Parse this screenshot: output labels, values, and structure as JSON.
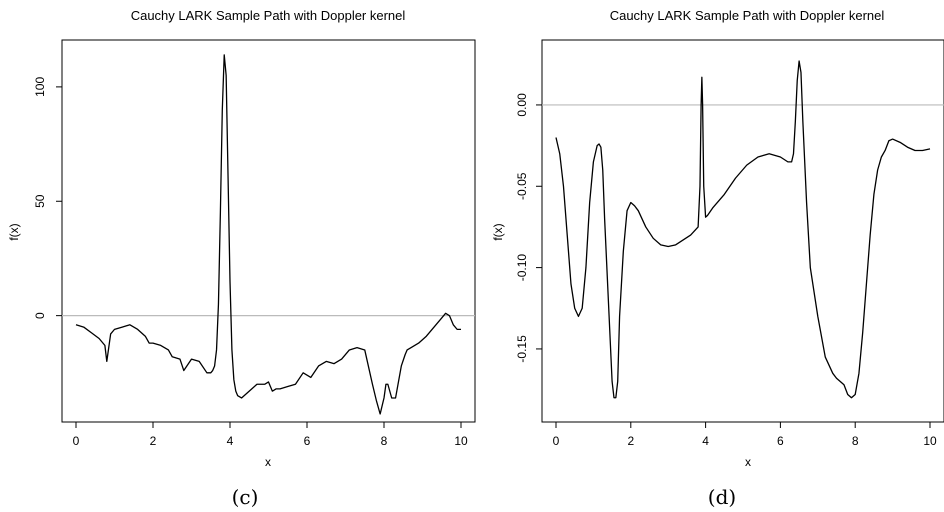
{
  "chart_data": [
    {
      "type": "line",
      "title": "Cauchy LARK Sample Path with Doppler kernel",
      "xlabel": "x",
      "ylabel": "f(x)",
      "caption": "(c)",
      "xlim": [
        0,
        10
      ],
      "ylim": [
        -43,
        117
      ],
      "xticks": [
        0,
        2,
        4,
        6,
        8,
        10
      ],
      "yticks": [
        0,
        50,
        100
      ],
      "reference_line_y": 0,
      "colors": {
        "line": "#000000",
        "reference": "#bbbbbb"
      },
      "series": [
        {
          "x": [
            0,
            0.2,
            0.4,
            0.6,
            0.75,
            0.8,
            0.9,
            1.0,
            1.2,
            1.4,
            1.6,
            1.8,
            1.9,
            2.0,
            2.2,
            2.4,
            2.5,
            2.7,
            2.8,
            3.0,
            3.2,
            3.4,
            3.5,
            3.55,
            3.6,
            3.65,
            3.7,
            3.75,
            3.8,
            3.85,
            3.9,
            3.95,
            4.0,
            4.05,
            4.1,
            4.15,
            4.2,
            4.3,
            4.5,
            4.7,
            4.9,
            5.0,
            5.1,
            5.2,
            5.3,
            5.5,
            5.7,
            5.9,
            6.1,
            6.3,
            6.5,
            6.7,
            6.9,
            7.1,
            7.3,
            7.5,
            7.7,
            7.8,
            7.9,
            8.0,
            8.05,
            8.1,
            8.2,
            8.3,
            8.45,
            8.55,
            8.6,
            8.7,
            8.9,
            9.1,
            9.3,
            9.5,
            9.6,
            9.7,
            9.8,
            9.9,
            10.0
          ],
          "y": [
            -4,
            -5,
            -7.5,
            -10,
            -13,
            -20,
            -8,
            -6,
            -5,
            -4,
            -6,
            -9,
            -12,
            -12,
            -13,
            -15,
            -18,
            -19,
            -24,
            -19,
            -20,
            -25,
            -25,
            -24,
            -22,
            -15,
            5,
            45,
            90,
            114,
            105,
            60,
            15,
            -15,
            -28,
            -33,
            -35,
            -36,
            -33,
            -30,
            -30,
            -29,
            -33,
            -32,
            -32,
            -31,
            -30,
            -25,
            -27,
            -22,
            -20,
            -21,
            -19,
            -15,
            -14,
            -15,
            -30,
            -37,
            -43,
            -36,
            -30,
            -30,
            -36,
            -36,
            -22,
            -17,
            -15,
            -14,
            -12,
            -9,
            -5,
            -1,
            1,
            0,
            -4,
            -6,
            -6
          ]
        }
      ]
    },
    {
      "type": "line",
      "title": "Cauchy LARK Sample Path with Doppler kernel",
      "xlabel": "x",
      "ylabel": "f(x)",
      "caption": "(d)",
      "xlim": [
        0,
        10
      ],
      "ylim": [
        -0.19,
        0.035
      ],
      "xticks": [
        0,
        2,
        4,
        6,
        8,
        10
      ],
      "yticks": [
        0.0,
        -0.05,
        -0.1,
        -0.15
      ],
      "ytick_labels": [
        "0.00",
        "-0.05",
        "-0.10",
        "-0.15"
      ],
      "reference_line_y": 0,
      "colors": {
        "line": "#000000",
        "reference": "#bbbbbb"
      },
      "series": [
        {
          "x": [
            0,
            0.1,
            0.2,
            0.3,
            0.4,
            0.5,
            0.6,
            0.7,
            0.8,
            0.9,
            1.0,
            1.1,
            1.15,
            1.2,
            1.25,
            1.3,
            1.4,
            1.5,
            1.55,
            1.6,
            1.65,
            1.7,
            1.8,
            1.9,
            2.0,
            2.1,
            2.2,
            2.4,
            2.6,
            2.8,
            3.0,
            3.2,
            3.4,
            3.6,
            3.8,
            3.85,
            3.88,
            3.9,
            3.92,
            3.95,
            4.0,
            4.05,
            4.2,
            4.5,
            4.8,
            5.1,
            5.4,
            5.7,
            6.0,
            6.2,
            6.3,
            6.35,
            6.4,
            6.45,
            6.5,
            6.55,
            6.6,
            6.7,
            6.8,
            7.0,
            7.2,
            7.4,
            7.5,
            7.6,
            7.7,
            7.8,
            7.9,
            8.0,
            8.1,
            8.2,
            8.3,
            8.4,
            8.5,
            8.6,
            8.7,
            8.8,
            8.9,
            9.0,
            9.2,
            9.4,
            9.6,
            9.8,
            10.0
          ],
          "y": [
            -0.02,
            -0.03,
            -0.05,
            -0.08,
            -0.11,
            -0.125,
            -0.13,
            -0.125,
            -0.1,
            -0.06,
            -0.035,
            -0.025,
            -0.024,
            -0.026,
            -0.04,
            -0.07,
            -0.12,
            -0.17,
            -0.18,
            -0.18,
            -0.17,
            -0.13,
            -0.09,
            -0.065,
            -0.06,
            -0.062,
            -0.065,
            -0.075,
            -0.082,
            -0.086,
            -0.087,
            -0.086,
            -0.083,
            -0.08,
            -0.075,
            -0.05,
            0.0,
            0.017,
            0.0,
            -0.05,
            -0.069,
            -0.068,
            -0.063,
            -0.055,
            -0.045,
            -0.037,
            -0.032,
            -0.03,
            -0.032,
            -0.035,
            -0.035,
            -0.03,
            -0.01,
            0.015,
            0.027,
            0.02,
            -0.01,
            -0.06,
            -0.1,
            -0.13,
            -0.155,
            -0.165,
            -0.168,
            -0.17,
            -0.172,
            -0.178,
            -0.18,
            -0.178,
            -0.165,
            -0.14,
            -0.11,
            -0.08,
            -0.055,
            -0.04,
            -0.032,
            -0.028,
            -0.022,
            -0.021,
            -0.023,
            -0.026,
            -0.028,
            -0.028,
            -0.027
          ]
        }
      ]
    }
  ]
}
